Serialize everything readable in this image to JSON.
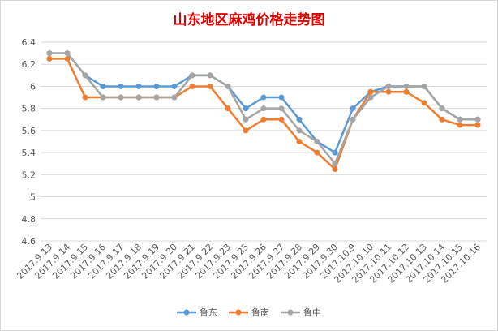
{
  "chart_data": {
    "type": "line",
    "title": "山东地区麻鸡价格走势图",
    "xlabel": "",
    "ylabel": "",
    "categories": [
      "2017.9.13",
      "2017.9.14",
      "2017.9.15",
      "2017.9.16",
      "2017.9.17",
      "2017.9.18",
      "2017.9.19",
      "2017.9.20",
      "2017.9.21",
      "2017.9.22",
      "2017.9.23",
      "2017.9.25",
      "2017.9.26",
      "2017.9.27",
      "2017.9.28",
      "2017.9.29",
      "2017.9.30",
      "2017.10.9",
      "2017.10.10",
      "2017.10.11",
      "2017.10.12",
      "2017.10.13",
      "2017.10.14",
      "2017.10.15",
      "2017.10.16"
    ],
    "yticks": [
      "4.6",
      "4.8",
      "5",
      "5.2",
      "5.4",
      "5.6",
      "5.8",
      "6",
      "6.2",
      "6.4"
    ],
    "ylim": [
      4.6,
      6.4
    ],
    "grid": true,
    "legend_position": "bottom",
    "series": [
      {
        "name": "鲁东",
        "color": "#5b9bd5",
        "values": [
          6.3,
          6.3,
          6.1,
          6.0,
          6.0,
          6.0,
          6.0,
          6.0,
          6.1,
          6.1,
          6.0,
          5.8,
          5.9,
          5.9,
          5.7,
          5.5,
          5.4,
          5.8,
          5.95,
          6.0,
          6.0,
          6.0,
          5.8,
          5.7,
          5.7
        ]
      },
      {
        "name": "鲁南",
        "color": "#ed7d31",
        "values": [
          6.25,
          6.25,
          5.9,
          5.9,
          5.9,
          5.9,
          5.9,
          5.9,
          6.0,
          6.0,
          5.8,
          5.6,
          5.7,
          5.7,
          5.5,
          5.4,
          5.25,
          5.7,
          5.95,
          5.95,
          5.95,
          5.85,
          5.7,
          5.65,
          5.65
        ]
      },
      {
        "name": "鲁中",
        "color": "#a5a5a5",
        "values": [
          6.3,
          6.3,
          6.1,
          5.9,
          5.9,
          5.9,
          5.9,
          5.9,
          6.1,
          6.1,
          6.0,
          5.7,
          5.8,
          5.8,
          5.6,
          5.5,
          5.3,
          5.7,
          5.9,
          6.0,
          6.0,
          6.0,
          5.8,
          5.7,
          5.7
        ]
      }
    ]
  }
}
